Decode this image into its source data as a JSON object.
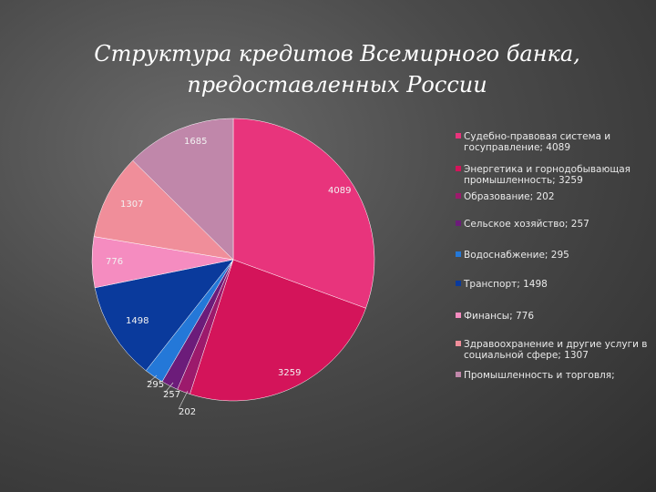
{
  "title": "Структура кредитов Всемирного банка, предоставленных России",
  "chart_data": {
    "type": "pie",
    "title": "Структура кредитов Всемирного банка, предоставленных России",
    "slices": [
      {
        "label": "Судебно-правовая система и госуправление; 4089",
        "value": 4089,
        "data_label": "4089",
        "color": "#e8347c"
      },
      {
        "label": "Энергетика и горнодобывающая промышленность; 3259",
        "value": 3259,
        "data_label": "3259",
        "color": "#d4145a"
      },
      {
        "label": "Образование; 202",
        "value": 202,
        "data_label": "202",
        "color": "#9c1a6c"
      },
      {
        "label": "Сельское хозяйство; 257",
        "value": 257,
        "data_label": "257",
        "color": "#6c1c7a"
      },
      {
        "label": "Водоснабжение; 295",
        "value": 295,
        "data_label": "295",
        "color": "#2478d8"
      },
      {
        "label": "Транспорт; 1498",
        "value": 1498,
        "data_label": "1498",
        "color": "#0a3a9c"
      },
      {
        "label": "Финансы; 776",
        "value": 776,
        "data_label": "776",
        "color": "#f58cc0"
      },
      {
        "label": "Здравоохранение и другие услуги в социальной сфере; 1307",
        "value": 1307,
        "data_label": "1307",
        "color": "#f08e9a"
      },
      {
        "label": "Промышленность и торговля;",
        "value": 1685,
        "data_label": "1685",
        "color": "#c087aa"
      }
    ],
    "legend_position": "right"
  }
}
